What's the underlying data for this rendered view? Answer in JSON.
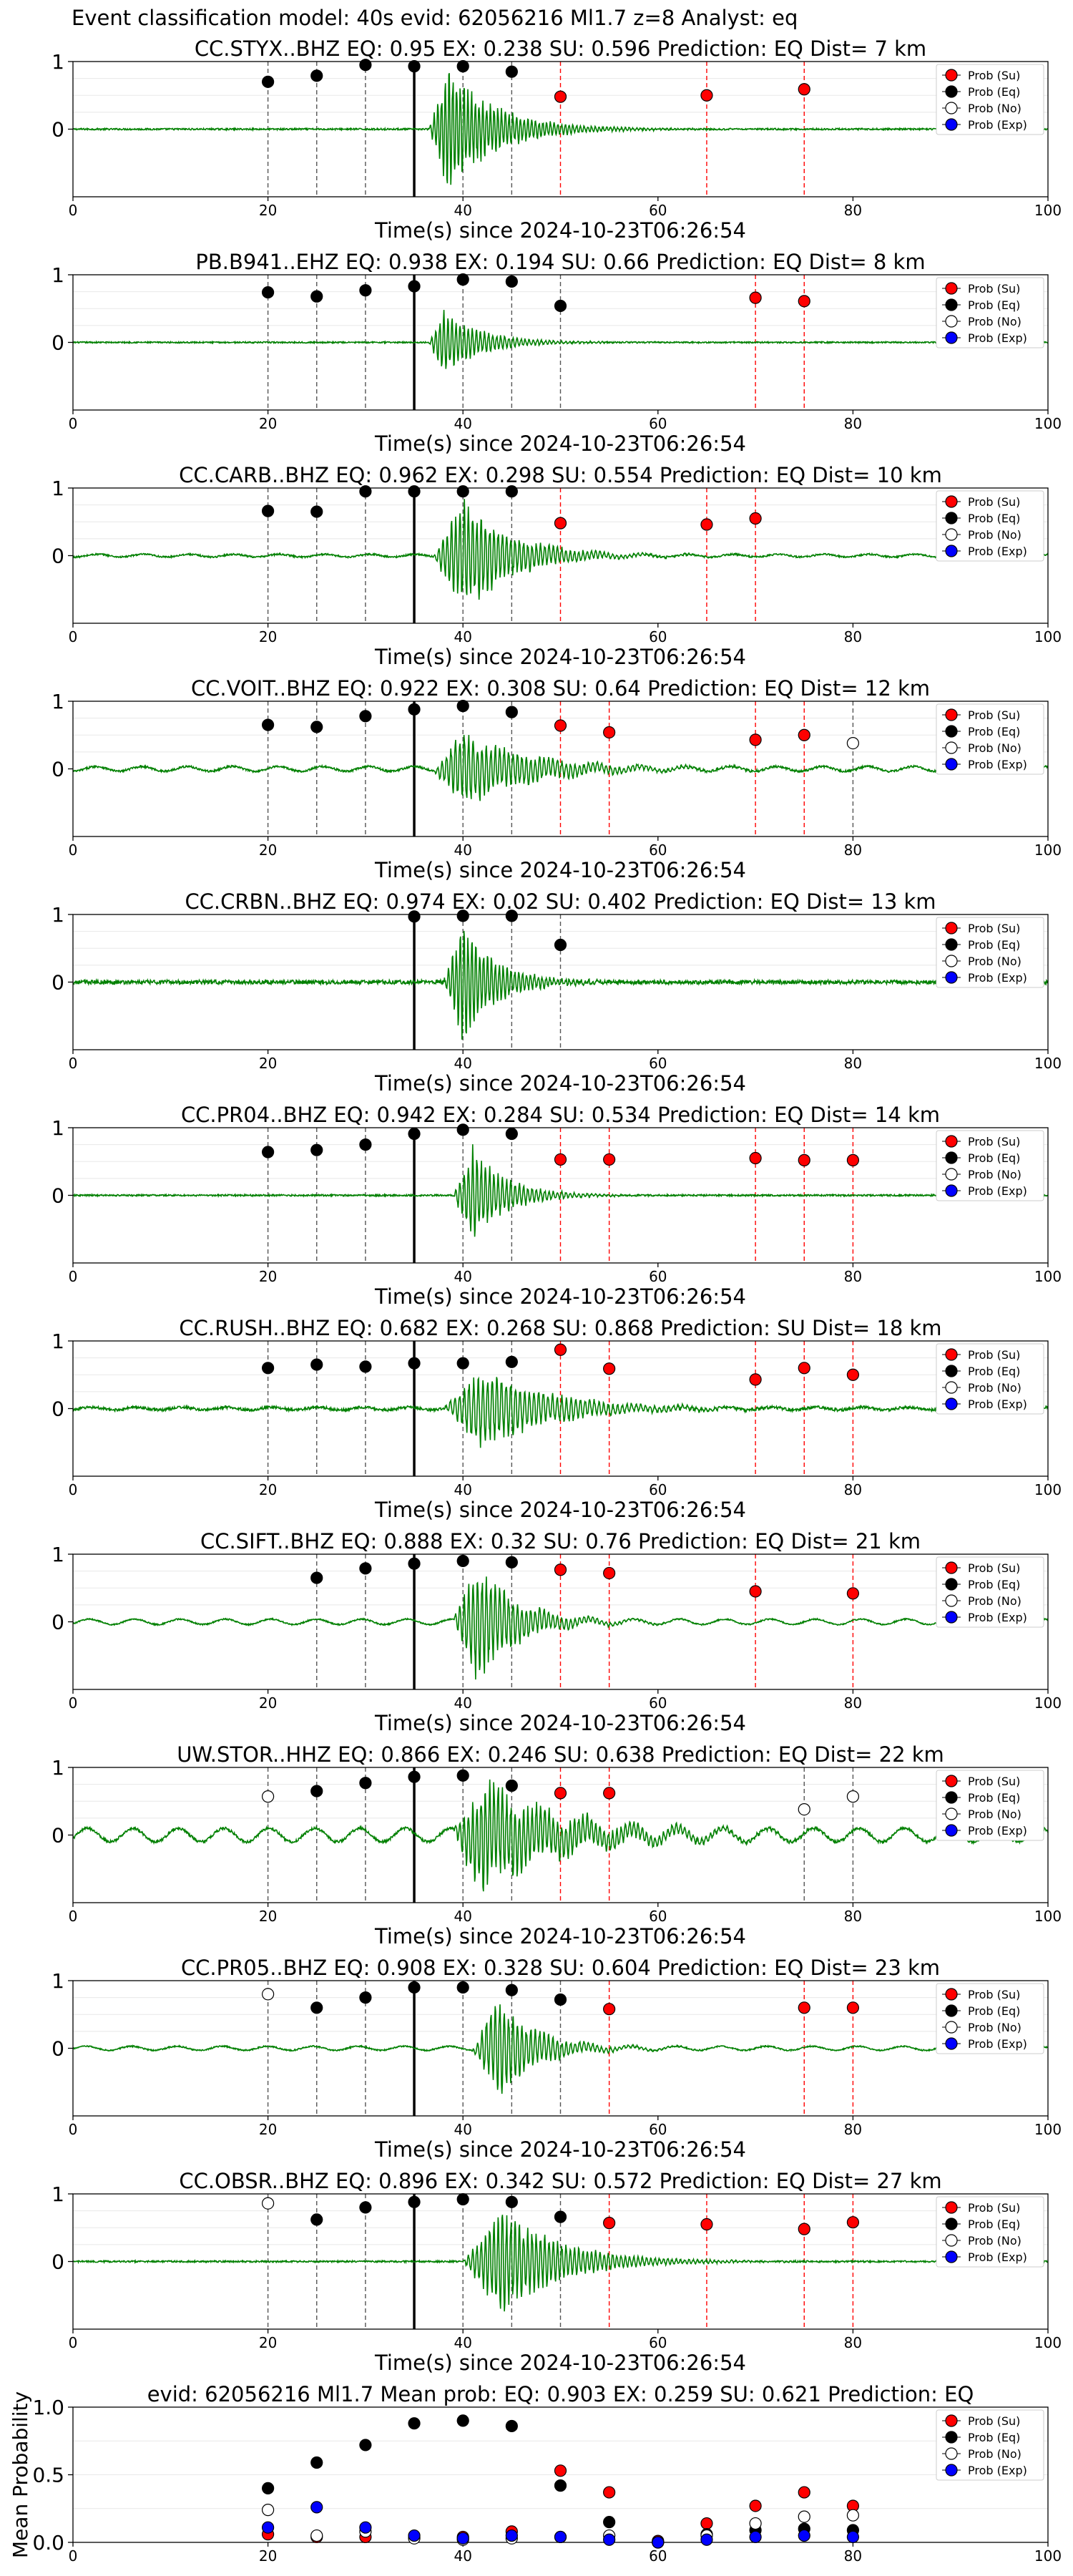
{
  "figure": {
    "suptitle": "Event classification model: 40s evid: 62056216 Ml1.7 z=8 Analyst: eq",
    "xlabel": "Time(s) since 2024-10-23T06:26:54",
    "mean_ylabel": "Mean Probability"
  },
  "colors": {
    "waveform": "#008000",
    "su": "#ff0000",
    "eq": "#000000",
    "no": "#ffffff",
    "exp": "#0000ff",
    "red_line": "#ff0000",
    "gray_line": "#555555",
    "arrival_line": "#000000"
  },
  "legend": {
    "position": "upper-right",
    "entries": [
      "Prob (Su)",
      "Prob (Eq)",
      "Prob (No)",
      "Prob (Exp)"
    ]
  },
  "chart_data": [
    {
      "type": "scatter",
      "title": "CC.STYX..BHZ   EQ: 0.95  EX: 0.238  SU: 0.596   Prediction: EQ    Dist= 7 km",
      "xlabel": "Time(s) since 2024-10-23T06:26:54",
      "xlim": [
        0,
        100
      ],
      "ylim": [
        -1,
        1
      ],
      "xticks": [
        "0",
        "20",
        "40",
        "60",
        "80",
        "100"
      ],
      "yticks": [
        "1",
        "0"
      ],
      "arrival": 35,
      "wave": {
        "onset": 36.5,
        "peak_at": 38.5,
        "amp": 0.95,
        "decay": 5,
        "freq": 2.6,
        "noise": 0.012,
        "low": 0
      },
      "series": [
        {
          "name": "Prob (Su)",
          "x": [
            50,
            65,
            75
          ],
          "y": [
            0.48,
            0.5,
            0.59
          ]
        },
        {
          "name": "Prob (Eq)",
          "x": [
            20,
            25,
            30,
            35,
            40,
            45
          ],
          "y": [
            0.7,
            0.79,
            0.95,
            0.93,
            0.93,
            0.85
          ]
        },
        {
          "name": "Prob (No)",
          "x": [],
          "y": []
        },
        {
          "name": "Prob (Exp)",
          "x": [],
          "y": []
        }
      ]
    },
    {
      "type": "scatter",
      "title": "PB.B941..EHZ   EQ: 0.938  EX: 0.194  SU: 0.66   Prediction: EQ    Dist= 8 km",
      "xlabel": "Time(s) since 2024-10-23T06:26:54",
      "xlim": [
        0,
        100
      ],
      "ylim": [
        -1,
        1
      ],
      "xticks": [
        "0",
        "20",
        "40",
        "60",
        "80",
        "100"
      ],
      "yticks": [
        "1",
        "0"
      ],
      "arrival": 35,
      "wave": {
        "onset": 36.5,
        "peak_at": 38,
        "amp": 0.5,
        "decay": 4,
        "freq": 2.4,
        "noise": 0.01,
        "low": 0
      },
      "series": [
        {
          "name": "Prob (Su)",
          "x": [
            70,
            75
          ],
          "y": [
            0.66,
            0.61
          ]
        },
        {
          "name": "Prob (Eq)",
          "x": [
            20,
            25,
            30,
            35,
            40,
            45,
            50
          ],
          "y": [
            0.74,
            0.68,
            0.77,
            0.83,
            0.93,
            0.9,
            0.54
          ]
        },
        {
          "name": "Prob (No)",
          "x": [],
          "y": []
        },
        {
          "name": "Prob (Exp)",
          "x": [],
          "y": []
        }
      ]
    },
    {
      "type": "scatter",
      "title": "CC.CARB..BHZ   EQ: 0.962  EX: 0.298  SU: 0.554   Prediction: EQ    Dist= 10 km",
      "xlabel": "Time(s) since 2024-10-23T06:26:54",
      "xlim": [
        0,
        100
      ],
      "ylim": [
        -1,
        1
      ],
      "xticks": [
        "0",
        "20",
        "40",
        "60",
        "80",
        "100"
      ],
      "yticks": [
        "1",
        "0"
      ],
      "arrival": 35,
      "wave": {
        "onset": 37,
        "peak_at": 40,
        "amp": 0.95,
        "decay": 5,
        "freq": 2.3,
        "noise": 0.012,
        "low": 0.02
      },
      "series": [
        {
          "name": "Prob (Su)",
          "x": [
            50,
            65,
            70
          ],
          "y": [
            0.48,
            0.46,
            0.55
          ]
        },
        {
          "name": "Prob (Eq)",
          "x": [
            20,
            25,
            30,
            35,
            40,
            45
          ],
          "y": [
            0.66,
            0.65,
            0.95,
            0.95,
            0.95,
            0.95
          ]
        },
        {
          "name": "Prob (No)",
          "x": [],
          "y": []
        },
        {
          "name": "Prob (Exp)",
          "x": [],
          "y": []
        }
      ]
    },
    {
      "type": "scatter",
      "title": "CC.VOIT..BHZ   EQ: 0.922  EX: 0.308  SU: 0.64   Prediction: EQ    Dist= 12 km",
      "xlabel": "Time(s) since 2024-10-23T06:26:54",
      "xlim": [
        0,
        100
      ],
      "ylim": [
        -1,
        1
      ],
      "xticks": [
        "0",
        "20",
        "40",
        "60",
        "80",
        "100"
      ],
      "yticks": [
        "1",
        "0"
      ],
      "arrival": 35,
      "wave": {
        "onset": 37,
        "peak_at": 40,
        "amp": 0.6,
        "decay": 7,
        "freq": 2.2,
        "noise": 0.015,
        "low": 0.035
      },
      "series": [
        {
          "name": "Prob (Su)",
          "x": [
            50,
            55,
            70,
            75
          ],
          "y": [
            0.64,
            0.54,
            0.43,
            0.5
          ]
        },
        {
          "name": "Prob (Eq)",
          "x": [
            20,
            25,
            30,
            35,
            40,
            45
          ],
          "y": [
            0.65,
            0.62,
            0.78,
            0.88,
            0.93,
            0.84
          ]
        },
        {
          "name": "Prob (No)",
          "x": [
            80
          ],
          "y": [
            0.38
          ]
        },
        {
          "name": "Prob (Exp)",
          "x": [],
          "y": []
        }
      ]
    },
    {
      "type": "scatter",
      "title": "CC.CRBN..BHZ   EQ: 0.974  EX: 0.02  SU: 0.402   Prediction: EQ    Dist= 13 km",
      "xlabel": "Time(s) since 2024-10-23T06:26:54",
      "xlim": [
        0,
        100
      ],
      "ylim": [
        -1,
        1
      ],
      "xticks": [
        "0",
        "20",
        "40",
        "60",
        "80",
        "100"
      ],
      "yticks": [
        "1",
        "0"
      ],
      "arrival": 35,
      "wave": {
        "onset": 38,
        "peak_at": 40,
        "amp": 0.95,
        "decay": 3.5,
        "freq": 2.5,
        "noise": 0.03,
        "low": 0
      },
      "series": [
        {
          "name": "Prob (Su)",
          "x": [],
          "y": []
        },
        {
          "name": "Prob (Eq)",
          "x": [
            35,
            40,
            45,
            50
          ],
          "y": [
            0.97,
            0.98,
            0.98,
            0.55
          ]
        },
        {
          "name": "Prob (No)",
          "x": [],
          "y": []
        },
        {
          "name": "Prob (Exp)",
          "x": [],
          "y": []
        }
      ]
    },
    {
      "type": "scatter",
      "title": "CC.PR04..BHZ   EQ: 0.942  EX: 0.284  SU: 0.534   Prediction: EQ    Dist= 14 km",
      "xlabel": "Time(s) since 2024-10-23T06:26:54",
      "xlim": [
        0,
        100
      ],
      "ylim": [
        -1,
        1
      ],
      "xticks": [
        "0",
        "20",
        "40",
        "60",
        "80",
        "100"
      ],
      "yticks": [
        "1",
        "0"
      ],
      "arrival": 35,
      "wave": {
        "onset": 39,
        "peak_at": 41,
        "amp": 0.75,
        "decay": 3.5,
        "freq": 2.3,
        "noise": 0.012,
        "low": 0
      },
      "series": [
        {
          "name": "Prob (Su)",
          "x": [
            50,
            55,
            70,
            75,
            80
          ],
          "y": [
            0.53,
            0.53,
            0.55,
            0.52,
            0.52
          ]
        },
        {
          "name": "Prob (Eq)",
          "x": [
            20,
            25,
            30,
            35,
            40,
            45
          ],
          "y": [
            0.64,
            0.67,
            0.75,
            0.91,
            0.97,
            0.91
          ]
        },
        {
          "name": "Prob (No)",
          "x": [],
          "y": []
        },
        {
          "name": "Prob (Exp)",
          "x": [],
          "y": []
        }
      ]
    },
    {
      "type": "scatter",
      "title": "CC.RUSH..BHZ   EQ: 0.682  EX: 0.268  SU: 0.868   Prediction: SU    Dist= 18 km",
      "xlabel": "Time(s) since 2024-10-23T06:26:54",
      "xlim": [
        0,
        100
      ],
      "ylim": [
        -1,
        1
      ],
      "xticks": [
        "0",
        "20",
        "40",
        "60",
        "80",
        "100"
      ],
      "yticks": [
        "1",
        "0"
      ],
      "arrival": 35,
      "wave": {
        "onset": 38,
        "peak_at": 42,
        "amp": 0.65,
        "decay": 7,
        "freq": 2.1,
        "noise": 0.02,
        "low": 0.02
      },
      "series": [
        {
          "name": "Prob (Su)",
          "x": [
            50,
            55,
            70,
            75,
            80
          ],
          "y": [
            0.87,
            0.59,
            0.43,
            0.6,
            0.5
          ]
        },
        {
          "name": "Prob (Eq)",
          "x": [
            20,
            25,
            30,
            35,
            40,
            45
          ],
          "y": [
            0.6,
            0.65,
            0.62,
            0.67,
            0.67,
            0.69
          ]
        },
        {
          "name": "Prob (No)",
          "x": [],
          "y": []
        },
        {
          "name": "Prob (Exp)",
          "x": [],
          "y": []
        }
      ]
    },
    {
      "type": "scatter",
      "title": "CC.SIFT..BHZ   EQ: 0.888  EX: 0.32  SU: 0.76   Prediction: EQ    Dist= 21 km",
      "xlabel": "Time(s) since 2024-10-23T06:26:54",
      "xlim": [
        0,
        100
      ],
      "ylim": [
        -1,
        1
      ],
      "xticks": [
        "0",
        "20",
        "40",
        "60",
        "80",
        "100"
      ],
      "yticks": [
        "1",
        "0"
      ],
      "arrival": 35,
      "wave": {
        "onset": 39,
        "peak_at": 41.5,
        "amp": 0.95,
        "decay": 4,
        "freq": 2.2,
        "noise": 0.01,
        "low": 0.04
      },
      "series": [
        {
          "name": "Prob (Su)",
          "x": [
            50,
            55,
            70,
            80
          ],
          "y": [
            0.77,
            0.72,
            0.45,
            0.42
          ]
        },
        {
          "name": "Prob (Eq)",
          "x": [
            25,
            30,
            35,
            40,
            45
          ],
          "y": [
            0.65,
            0.79,
            0.86,
            0.9,
            0.88
          ]
        },
        {
          "name": "Prob (No)",
          "x": [],
          "y": []
        },
        {
          "name": "Prob (Exp)",
          "x": [],
          "y": []
        }
      ]
    },
    {
      "type": "scatter",
      "title": "UW.STOR..HHZ   EQ: 0.866  EX: 0.246  SU: 0.638   Prediction: EQ    Dist= 22 km",
      "xlabel": "Time(s) since 2024-10-23T06:26:54",
      "xlim": [
        0,
        100
      ],
      "ylim": [
        -1,
        1
      ],
      "xticks": [
        "0",
        "20",
        "40",
        "60",
        "80",
        "100"
      ],
      "yticks": [
        "1",
        "0"
      ],
      "arrival": 35,
      "wave": {
        "onset": 39,
        "peak_at": 42,
        "amp": 0.9,
        "decay": 8,
        "freq": 2.3,
        "noise": 0.02,
        "low": 0.1
      },
      "series": [
        {
          "name": "Prob (Su)",
          "x": [
            50,
            55
          ],
          "y": [
            0.62,
            0.62
          ]
        },
        {
          "name": "Prob (Eq)",
          "x": [
            25,
            30,
            35,
            40,
            45
          ],
          "y": [
            0.65,
            0.77,
            0.86,
            0.88,
            0.73
          ]
        },
        {
          "name": "Prob (No)",
          "x": [
            20,
            75,
            80
          ],
          "y": [
            0.57,
            0.38,
            0.57
          ]
        },
        {
          "name": "Prob (Exp)",
          "x": [],
          "y": []
        }
      ]
    },
    {
      "type": "scatter",
      "title": "CC.PR05..BHZ   EQ: 0.908  EX: 0.328  SU: 0.604   Prediction: EQ    Dist= 23 km",
      "xlabel": "Time(s) since 2024-10-23T06:26:54",
      "xlim": [
        0,
        100
      ],
      "ylim": [
        -1,
        1
      ],
      "xticks": [
        "0",
        "20",
        "40",
        "60",
        "80",
        "100"
      ],
      "yticks": [
        "1",
        "0"
      ],
      "arrival": 35,
      "wave": {
        "onset": 41,
        "peak_at": 43.5,
        "amp": 0.8,
        "decay": 4,
        "freq": 2.2,
        "noise": 0.01,
        "low": 0.03
      },
      "series": [
        {
          "name": "Prob (Su)",
          "x": [
            55,
            75,
            80
          ],
          "y": [
            0.58,
            0.6,
            0.6
          ]
        },
        {
          "name": "Prob (Eq)",
          "x": [
            25,
            30,
            35,
            40,
            45,
            50
          ],
          "y": [
            0.6,
            0.75,
            0.9,
            0.9,
            0.86,
            0.72
          ]
        },
        {
          "name": "Prob (No)",
          "x": [
            20
          ],
          "y": [
            0.8
          ]
        },
        {
          "name": "Prob (Exp)",
          "x": [],
          "y": []
        }
      ]
    },
    {
      "type": "scatter",
      "title": "CC.OBSR..BHZ   EQ: 0.896  EX: 0.342  SU: 0.572   Prediction: EQ    Dist= 27 km",
      "xlabel": "Time(s) since 2024-10-23T06:26:54",
      "xlim": [
        0,
        100
      ],
      "ylim": [
        -1,
        1
      ],
      "xticks": [
        "0",
        "20",
        "40",
        "60",
        "80",
        "100"
      ],
      "yticks": [
        "1",
        "0"
      ],
      "arrival": 35,
      "wave": {
        "onset": 40,
        "peak_at": 44,
        "amp": 0.85,
        "decay": 6,
        "freq": 2.3,
        "noise": 0.012,
        "low": 0
      },
      "series": [
        {
          "name": "Prob (Su)",
          "x": [
            55,
            65,
            75,
            80
          ],
          "y": [
            0.57,
            0.55,
            0.48,
            0.58
          ]
        },
        {
          "name": "Prob (Eq)",
          "x": [
            25,
            30,
            35,
            40,
            45,
            50
          ],
          "y": [
            0.62,
            0.8,
            0.88,
            0.92,
            0.88,
            0.66
          ]
        },
        {
          "name": "Prob (No)",
          "x": [
            20
          ],
          "y": [
            0.86
          ]
        },
        {
          "name": "Prob (Exp)",
          "x": [],
          "y": []
        }
      ]
    },
    {
      "type": "scatter",
      "title": "evid: 62056216  Ml1.7   Mean prob:   EQ: 0.903  EX: 0.259  SU: 0.621   Prediction: EQ",
      "xlabel": "",
      "ylabel": "Mean Probability",
      "xlim": [
        0,
        100
      ],
      "ylim": [
        0,
        1
      ],
      "xticks": [
        "0",
        "20",
        "40",
        "60",
        "80",
        "100"
      ],
      "yticks": [
        "1.0",
        "0.5",
        "0.0"
      ],
      "series": [
        {
          "name": "Prob (Su)",
          "x": [
            20,
            25,
            30,
            35,
            40,
            45,
            50,
            55,
            60,
            65,
            70,
            75,
            80
          ],
          "y": [
            0.06,
            0.04,
            0.04,
            0.04,
            0.04,
            0.08,
            0.53,
            0.37,
            0.01,
            0.14,
            0.27,
            0.37,
            0.27
          ]
        },
        {
          "name": "Prob (Eq)",
          "x": [
            20,
            25,
            30,
            35,
            40,
            45,
            50,
            55,
            60,
            65,
            70,
            75,
            80
          ],
          "y": [
            0.4,
            0.59,
            0.72,
            0.88,
            0.9,
            0.86,
            0.42,
            0.15,
            0.0,
            0.06,
            0.09,
            0.1,
            0.09
          ]
        },
        {
          "name": "Prob (No)",
          "x": [
            20,
            25,
            30,
            35,
            40,
            45,
            50,
            55,
            60,
            65,
            70,
            75,
            80
          ],
          "y": [
            0.24,
            0.05,
            0.08,
            0.03,
            0.02,
            0.03,
            0.04,
            0.05,
            0.0,
            0.05,
            0.14,
            0.19,
            0.2
          ]
        },
        {
          "name": "Prob (Exp)",
          "x": [
            20,
            25,
            30,
            35,
            40,
            45,
            50,
            55,
            60,
            65,
            70,
            75,
            80
          ],
          "y": [
            0.11,
            0.26,
            0.11,
            0.05,
            0.03,
            0.05,
            0.04,
            0.02,
            0.0,
            0.02,
            0.04,
            0.05,
            0.04
          ]
        }
      ]
    }
  ]
}
